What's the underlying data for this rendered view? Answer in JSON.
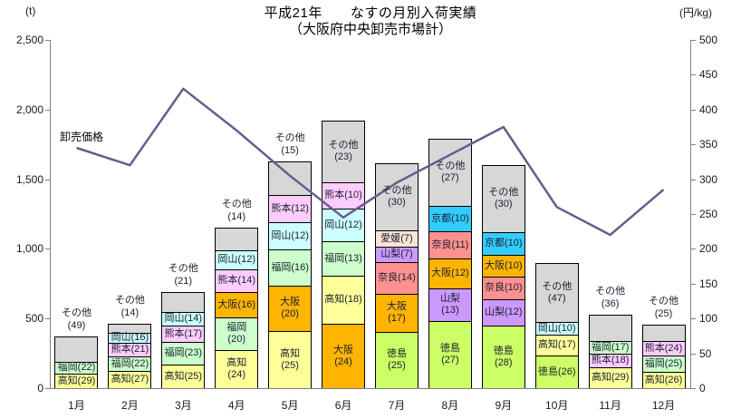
{
  "title": "平成21年　　なすの月別入荷実績",
  "subtitle": "（大阪府中央卸売市場計）",
  "left_axis_unit": "(t)",
  "right_axis_unit": "(円/kg)",
  "price_line_label": "卸売価格",
  "chart_data": {
    "type": "bar",
    "subtype": "stacked-bar-with-line",
    "title": "平成21年　なすの月別入荷実績",
    "subtitle": "（大阪府中央卸売市場計）",
    "categories": [
      "1月",
      "2月",
      "3月",
      "4月",
      "5月",
      "6月",
      "7月",
      "8月",
      "9月",
      "10月",
      "11月",
      "12月"
    ],
    "left_axis": {
      "unit": "(t)",
      "min": 0,
      "max": 2500,
      "step": 500,
      "ticks": [
        "0",
        "500",
        "1,000",
        "1,500",
        "2,000",
        "2,500"
      ]
    },
    "right_axis": {
      "unit": "(円/kg)",
      "min": 0,
      "max": 500,
      "step": 50,
      "ticks": [
        "0",
        "50",
        "100",
        "150",
        "200",
        "250",
        "300",
        "350",
        "400",
        "450",
        "500"
      ]
    },
    "bar_totals_t": [
      370,
      465,
      690,
      1150,
      1630,
      1920,
      1615,
      1790,
      1600,
      900,
      525,
      455
    ],
    "stacks": [
      [
        {
          "name": "高知",
          "share": 29
        },
        {
          "name": "福岡",
          "share": 22
        },
        {
          "name": "その他",
          "share": 49,
          "wrap": true,
          "label_outside": true
        }
      ],
      [
        {
          "name": "高知",
          "share": 27
        },
        {
          "name": "福岡",
          "share": 22
        },
        {
          "name": "熊本",
          "share": 21
        },
        {
          "name": "岡山",
          "share": 16
        },
        {
          "name": "その他",
          "share": 14,
          "wrap": true,
          "label_outside": true
        }
      ],
      [
        {
          "name": "高知",
          "share": 25
        },
        {
          "name": "福岡",
          "share": 23
        },
        {
          "name": "熊本",
          "share": 17
        },
        {
          "name": "岡山",
          "share": 14
        },
        {
          "name": "その他",
          "share": 21,
          "wrap": true,
          "label_outside": true
        }
      ],
      [
        {
          "name": "高知",
          "share": 24,
          "wrap": true
        },
        {
          "name": "福岡",
          "share": 20,
          "wrap": true
        },
        {
          "name": "大阪",
          "share": 16
        },
        {
          "name": "熊本",
          "share": 14
        },
        {
          "name": "岡山",
          "share": 12
        },
        {
          "name": "その他",
          "share": 14,
          "wrap": true,
          "label_outside": true
        }
      ],
      [
        {
          "name": "高知",
          "share": 25,
          "wrap": true
        },
        {
          "name": "大阪",
          "share": 20,
          "wrap": true
        },
        {
          "name": "福岡",
          "share": 16
        },
        {
          "name": "岡山",
          "share": 12
        },
        {
          "name": "熊本",
          "share": 12
        },
        {
          "name": "その他",
          "share": 15,
          "wrap": true,
          "label_outside": true
        }
      ],
      [
        {
          "name": "大阪",
          "share": 24,
          "wrap": true
        },
        {
          "name": "高知",
          "share": 18
        },
        {
          "name": "福岡",
          "share": 13
        },
        {
          "name": "岡山",
          "share": 12
        },
        {
          "name": "熊本",
          "share": 10
        },
        {
          "name": "その他",
          "share": 23,
          "wrap": true
        }
      ],
      [
        {
          "name": "徳島",
          "share": 25,
          "wrap": true
        },
        {
          "name": "大阪",
          "share": 17,
          "wrap": true
        },
        {
          "name": "奈良",
          "share": 14
        },
        {
          "name": "山梨",
          "share": 7
        },
        {
          "name": "愛媛",
          "share": 7
        },
        {
          "name": "その他",
          "share": 30,
          "wrap": true
        }
      ],
      [
        {
          "name": "徳島",
          "share": 27,
          "wrap": true
        },
        {
          "name": "山梨",
          "share": 13,
          "wrap": true
        },
        {
          "name": "大阪",
          "share": 12
        },
        {
          "name": "奈良",
          "share": 11
        },
        {
          "name": "京都",
          "share": 10
        },
        {
          "name": "その他",
          "share": 27,
          "wrap": true
        }
      ],
      [
        {
          "name": "徳島",
          "share": 28,
          "wrap": true
        },
        {
          "name": "山梨",
          "share": 12
        },
        {
          "name": "奈良",
          "share": 10
        },
        {
          "name": "大阪",
          "share": 10
        },
        {
          "name": "京都",
          "share": 10
        },
        {
          "name": "その他",
          "share": 30,
          "wrap": true
        }
      ],
      [
        {
          "name": "徳島",
          "share": 26
        },
        {
          "name": "高知",
          "share": 17
        },
        {
          "name": "岡山",
          "share": 10
        },
        {
          "name": "その他",
          "share": 47,
          "wrap": true
        }
      ],
      [
        {
          "name": "高知",
          "share": 29
        },
        {
          "name": "熊本",
          "share": 18
        },
        {
          "name": "福岡",
          "share": 17
        },
        {
          "name": "その他",
          "share": 36,
          "wrap": true,
          "label_outside": true
        }
      ],
      [
        {
          "name": "高知",
          "share": 26
        },
        {
          "name": "福岡",
          "share": 25
        },
        {
          "name": "熊本",
          "share": 24
        },
        {
          "name": "その他",
          "share": 25,
          "wrap": true,
          "label_outside": true
        }
      ]
    ],
    "line": {
      "name": "卸売価格",
      "unit": "円/kg",
      "color": "#6B5A8C",
      "values": [
        345,
        320,
        430,
        370,
        305,
        245,
        295,
        335,
        375,
        260,
        220,
        285
      ]
    },
    "colors": {
      "高知": "#FFFF99",
      "福岡": "#CCFFCC",
      "熊本": "#FFCCFF",
      "岡山": "#CCFFFF",
      "大阪": "#FFB400",
      "徳島": "#CCFF66",
      "山梨": "#CC99FF",
      "奈良": "#FF9191",
      "京都": "#33CCFF",
      "愛媛": "#FBE5D6",
      "その他": "#D7D7D7"
    },
    "legend_position": "none",
    "grid": false
  }
}
